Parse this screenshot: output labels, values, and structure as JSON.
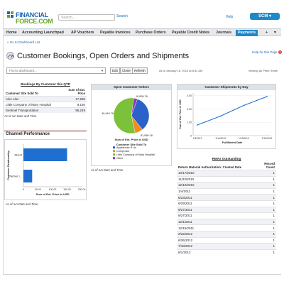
{
  "header": {
    "logo_line1": "FINANCIAL",
    "logo_line2": "FORCE.COM",
    "search_placeholder": "Search...",
    "search_button": "Search",
    "help_link": "Help",
    "user_button": "SCM",
    "accent": "#1e88c8"
  },
  "nav": {
    "items": [
      {
        "label": "Home"
      },
      {
        "label": "Accounting Launchpad"
      },
      {
        "label": "AP Vouchers"
      },
      {
        "label": "Payable Invoices"
      },
      {
        "label": "Purchase Orders"
      },
      {
        "label": "Payable Credit Notes"
      },
      {
        "label": "Journals"
      },
      {
        "label": "Payments"
      },
      {
        "label": "+"
      }
    ],
    "active": "Payments"
  },
  "page": {
    "back_link": "« Go to Dashboard List",
    "help_for_page": "Help for this Page",
    "title": "Customer Bookings, Open Orders and Shipments"
  },
  "toolbar": {
    "find_placeholder": "Find a dashboard...",
    "edit": "Edit",
    "clone": "Clone",
    "refresh": "Refresh",
    "as_of": "As of January 16, 2013 at 8:42 AM",
    "viewing_as": "Viewing as Peter Smith"
  },
  "bookings_table": {
    "title": "Bookings By Customer this QTR",
    "col1": "Customer Site Sold To",
    "col2": "Sum of Ext. Price",
    "rows": [
      {
        "name": "Aloc Aloc",
        "value": "17,935"
      },
      {
        "name": "Little Company of Mary Hospital",
        "value": "8,150"
      },
      {
        "name": "Sentinel Transportation",
        "value": "95,249"
      }
    ],
    "as_of": "As of run Date and Time"
  },
  "channel": {
    "title": "Channel Performance",
    "as_of": "As of run Date and Time",
    "chart_data": {
      "type": "bar",
      "orientation": "horizontal",
      "categories": [
        "Direct",
        "Partner I..."
      ],
      "values": [
        150,
        30
      ],
      "xlabel": "Sum of Ext. Price in USD",
      "ylabel": "Customer Relationship",
      "xticks": [
        "0",
        "50.00",
        "100.00",
        "150.00",
        "200.00"
      ],
      "xlim": [
        0,
        200
      ],
      "color": "#1f6fd1"
    }
  },
  "open_orders": {
    "title": "Open Customer Orders",
    "as_of": "As of run Date and Time",
    "chart_data": {
      "type": "pie",
      "labels": [
        "Appliances R Us",
        "CompCare",
        "Little Company of Mary Hospital",
        "Other"
      ],
      "values": [
        49449.79,
        10836.76,
        81566.18,
        5000
      ],
      "value_labels": [
        "49,449.79",
        "10,836.76",
        "81,566.18",
        ""
      ],
      "xlabel": "Sum of Ext. Price in USD",
      "legend_title": "Customer Site Sold To",
      "colors": [
        "#2a62c9",
        "#f08d1e",
        "#7bc13a",
        "#8a3db0"
      ]
    }
  },
  "shipments": {
    "title": "Customer Shipments by Day",
    "as_of": "",
    "chart_data": {
      "type": "line",
      "x": [
        "1/3/2013",
        "1/14/2013",
        "1/15/2013",
        "1/16/2013"
      ],
      "values": [
        1.2,
        2.2,
        3.4,
        4.4
      ],
      "ylabel": "Sum of Ext. Price in USD",
      "xlabel": "Fulfillment Date",
      "yticks": [
        "0",
        "1.50",
        "3.00",
        "4.50"
      ],
      "ylim": [
        0,
        4.8
      ],
      "color": "#1f6fd1"
    }
  },
  "rma_table": {
    "title": "RMAs Outstanding",
    "col1": "Return Material Authorization: Created Date",
    "col2": "Record Count",
    "rows": [
      {
        "date": "10/17/2010",
        "count": "1"
      },
      {
        "date": "11/23/2010",
        "count": "1"
      },
      {
        "date": "12/10/2010",
        "count": "1"
      },
      {
        "date": "1/4/2011",
        "count": "1"
      },
      {
        "date": "6/23/2011",
        "count": "1"
      },
      {
        "date": "8/29/2011",
        "count": "1"
      },
      {
        "date": "9/27/2011",
        "count": "1"
      },
      {
        "date": "9/27/2011",
        "count": "1"
      },
      {
        "date": "12/1/2011",
        "count": "1"
      },
      {
        "date": "12/15/2011",
        "count": "1"
      },
      {
        "date": "2/22/2012",
        "count": "1"
      },
      {
        "date": "6/26/2012",
        "count": "1"
      },
      {
        "date": "7/18/2012",
        "count": "1"
      },
      {
        "date": "8/1/2012",
        "count": "1"
      }
    ]
  }
}
